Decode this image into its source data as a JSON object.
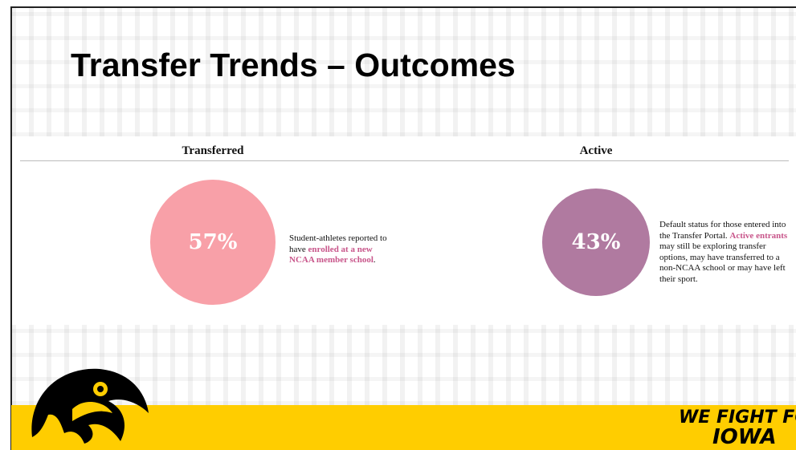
{
  "header": {
    "title": "Transfer Trends – Outcomes"
  },
  "sections": [
    {
      "heading": "Transferred",
      "stat": "57%",
      "description": [
        "Student-athletes reported to have ",
        "enrolled at a new NCAA member school",
        "."
      ]
    },
    {
      "heading": "Active",
      "stat": "43%",
      "description": [
        "Default status for those entered into the Transfer Portal. ",
        "Active entrants",
        " may still be exploring transfer options, may have transferred to a non-NCAA school or may have left their sport."
      ]
    }
  ],
  "footer": {
    "slogan": [
      "WE FIGHT FOR",
      "IOWA"
    ]
  }
}
